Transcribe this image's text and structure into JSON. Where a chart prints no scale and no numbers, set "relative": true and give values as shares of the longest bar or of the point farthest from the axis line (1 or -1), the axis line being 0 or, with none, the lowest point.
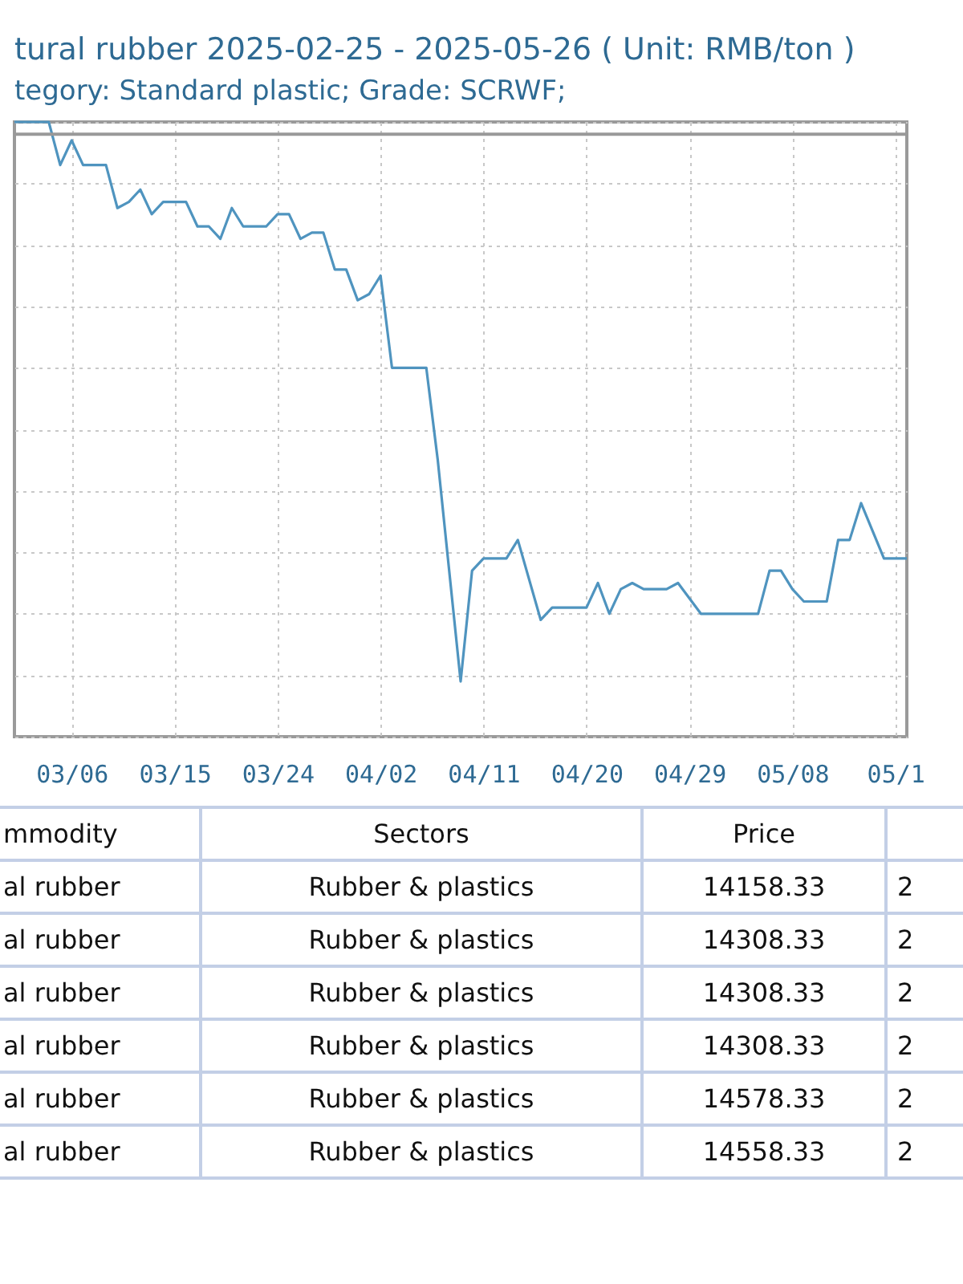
{
  "chart_data": {
    "type": "line",
    "title": "tural rubber 2025-02-25 - 2025-05-26    ( Unit: RMB/ton )",
    "subtitle": "tegory: Standard plastic; Grade: SCRWF;",
    "relative": true,
    "grid": true,
    "marker": "none",
    "line_style": "solid",
    "xlim": [
      "2025-03-01",
      "2025-05-18"
    ],
    "xticks": [
      {
        "value": "2025-03-06",
        "label": "03/06"
      },
      {
        "value": "2025-03-15",
        "label": "03/15"
      },
      {
        "value": "2025-03-24",
        "label": "03/24"
      },
      {
        "value": "2025-04-02",
        "label": "04/02"
      },
      {
        "value": "2025-04-11",
        "label": "04/11"
      },
      {
        "value": "2025-04-20",
        "label": "04/20"
      },
      {
        "value": "2025-04-29",
        "label": "04/29"
      },
      {
        "value": "2025-05-08",
        "label": "05/08"
      },
      {
        "value": "2025-05-17",
        "label": "05/1"
      }
    ],
    "x": [
      "2025-03-01",
      "2025-03-04",
      "2025-03-05",
      "2025-03-06",
      "2025-03-07",
      "2025-03-09",
      "2025-03-10",
      "2025-03-11",
      "2025-03-12",
      "2025-03-13",
      "2025-03-14",
      "2025-03-16",
      "2025-03-17",
      "2025-03-18",
      "2025-03-19",
      "2025-03-20",
      "2025-03-21",
      "2025-03-23",
      "2025-03-24",
      "2025-03-25",
      "2025-03-26",
      "2025-03-27",
      "2025-03-28",
      "2025-03-29",
      "2025-03-30",
      "2025-03-31",
      "2025-04-01",
      "2025-04-02",
      "2025-04-03",
      "2025-04-06",
      "2025-04-07",
      "2025-04-09",
      "2025-04-10",
      "2025-04-11",
      "2025-04-13",
      "2025-04-14",
      "2025-04-16",
      "2025-04-17",
      "2025-04-20",
      "2025-04-21",
      "2025-04-22",
      "2025-04-23",
      "2025-04-24",
      "2025-04-25",
      "2025-04-27",
      "2025-04-28",
      "2025-04-30",
      "2025-05-05",
      "2025-05-06",
      "2025-05-07",
      "2025-05-08",
      "2025-05-09",
      "2025-05-11",
      "2025-05-12",
      "2025-05-13",
      "2025-05-14",
      "2025-05-16",
      "2025-05-18"
    ],
    "series": [
      {
        "color": "#4f94bf",
        "values": [
          1.0,
          1.0,
          0.93,
          0.97,
          0.93,
          0.93,
          0.86,
          0.87,
          0.89,
          0.85,
          0.87,
          0.87,
          0.83,
          0.83,
          0.81,
          0.86,
          0.83,
          0.83,
          0.85,
          0.85,
          0.81,
          0.82,
          0.82,
          0.76,
          0.76,
          0.71,
          0.72,
          0.75,
          0.6,
          0.6,
          0.45,
          0.09,
          0.27,
          0.29,
          0.29,
          0.32,
          0.19,
          0.21,
          0.21,
          0.25,
          0.2,
          0.24,
          0.25,
          0.24,
          0.24,
          0.25,
          0.2,
          0.2,
          0.27,
          0.27,
          0.24,
          0.22,
          0.22,
          0.32,
          0.32,
          0.38,
          0.29,
          0.29
        ]
      }
    ],
    "ref_lines": [
      {
        "axis": "y",
        "value": 0.98,
        "color": "#999999"
      }
    ],
    "annotations": [
      "mmodity",
      "Sectors",
      "Price",
      "al rubber",
      "Rubber & plastics",
      "14158.33",
      "2",
      "al rubber",
      "Rubber & plastics",
      "14308.33",
      "2",
      "al rubber",
      "Rubber & plastics",
      "14308.33",
      "2",
      "al rubber",
      "Rubber & plastics",
      "14308.33",
      "2",
      "al rubber",
      "Rubber & plastics",
      "14578.33",
      "2",
      "al rubber",
      "Rubber & plastics",
      "14558.33",
      "2"
    ]
  }
}
